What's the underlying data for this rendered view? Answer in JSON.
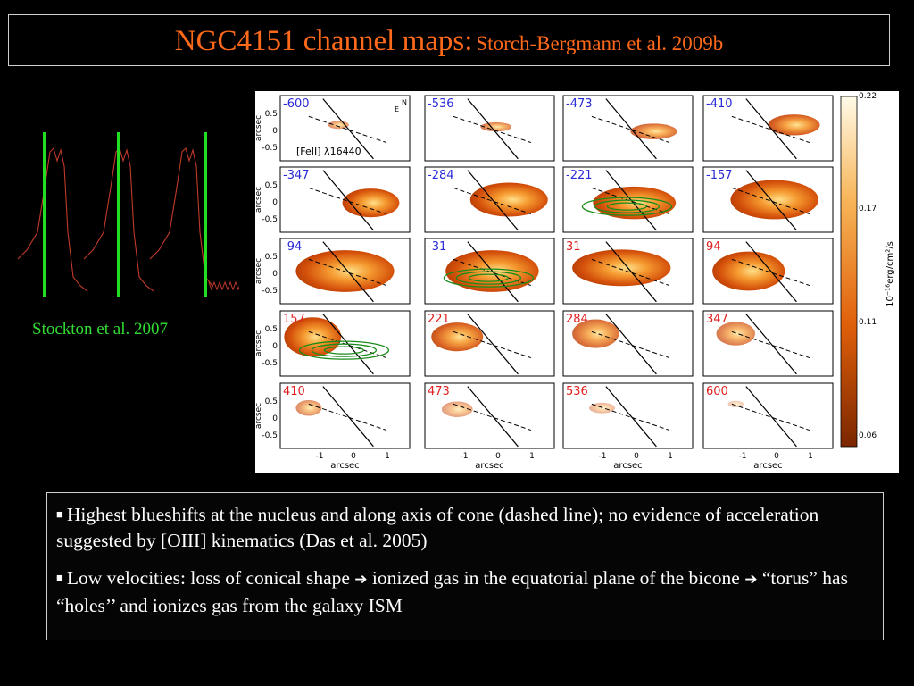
{
  "title": {
    "main": "NGC4151 channel maps:",
    "sub": "Storch-Bergmann et al. 2009b"
  },
  "spectra": {
    "caption": "Stockton et al. 2007",
    "line_color": "#c0392b",
    "marker_color": "#22dd22"
  },
  "figure": {
    "line_label": "[FeII] λ16440",
    "compass": [
      "N",
      "E"
    ],
    "y_axis_label": "arcsec",
    "x_axis_label": "arcsec",
    "y_ticks": [
      "0.5",
      "0",
      "-0.5"
    ],
    "x_ticks": [
      "-1",
      "0",
      "1"
    ],
    "channels": [
      "-600",
      "-536",
      "-473",
      "-410",
      "-347",
      "-284",
      "-221",
      "-157",
      "-94",
      "-31",
      "31",
      "94",
      "157",
      "221",
      "284",
      "347",
      "410",
      "473",
      "536",
      "600"
    ],
    "blue_color": "#2a2ad8",
    "red_color": "#e02020",
    "contour_panels": [
      "-221",
      "-31",
      "157"
    ],
    "contour_color": "#1a8c1a",
    "colorbar": {
      "ticks": [
        "0.22",
        "0.17",
        "0.11",
        "0.06"
      ],
      "label": "10⁻¹⁶erg/cm²/s"
    }
  },
  "bullets": [
    {
      "parts": [
        "Highest blueshifts at the nucleus and along axis of cone (dashed line); no evidence of acceleration suggested by [OIII] kinematics (Das et al. 2005)"
      ]
    },
    {
      "parts": [
        "Low velocities: loss of conical shape ",
        " ionized gas in the equatorial plane of the bicone ",
        " “torus” has “holes’’ and ionizes gas from the galaxy ISM"
      ]
    }
  ]
}
